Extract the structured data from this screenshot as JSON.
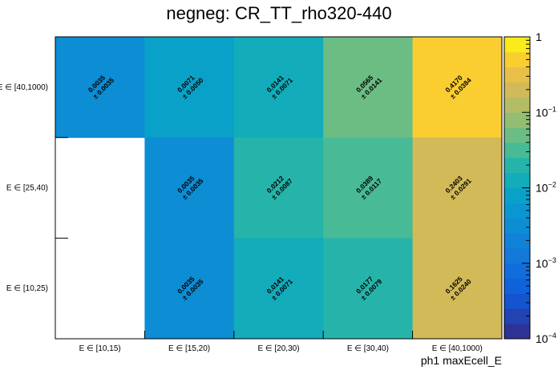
{
  "chart_data": {
    "type": "heatmap",
    "title": "negneg: CR_TT_rho320-440",
    "xlabel": "ph1 maxEcell_E",
    "ylabel": "",
    "x_categories": [
      "E ∈ [10,15)",
      "E ∈ [15,20)",
      "E ∈ [20,30)",
      "E ∈ [30,40)",
      "E ∈ [40,1000)"
    ],
    "y_categories": [
      "E ∈ [10,25)",
      "E ∈ [25,40)",
      "E ∈ [40,1000)"
    ],
    "cells": [
      {
        "x": 0,
        "y": 2,
        "value": 0.0035,
        "error": 0.0035,
        "value_label": "0.0035",
        "error_label": "± 0.0035"
      },
      {
        "x": 1,
        "y": 2,
        "value": 0.0071,
        "error": 0.005,
        "value_label": "0.0071",
        "error_label": "± 0.0050"
      },
      {
        "x": 2,
        "y": 2,
        "value": 0.0141,
        "error": 0.0071,
        "value_label": "0.0141",
        "error_label": "± 0.0071"
      },
      {
        "x": 3,
        "y": 2,
        "value": 0.0565,
        "error": 0.0141,
        "value_label": "0.0565",
        "error_label": "± 0.0141"
      },
      {
        "x": 4,
        "y": 2,
        "value": 0.417,
        "error": 0.0384,
        "value_label": "0.4170",
        "error_label": "± 0.0384"
      },
      {
        "x": 1,
        "y": 1,
        "value": 0.0035,
        "error": 0.0035,
        "value_label": "0.0035",
        "error_label": "± 0.0035"
      },
      {
        "x": 2,
        "y": 1,
        "value": 0.0212,
        "error": 0.0087,
        "value_label": "0.0212",
        "error_label": "± 0.0087"
      },
      {
        "x": 3,
        "y": 1,
        "value": 0.0389,
        "error": 0.0117,
        "value_label": "0.0389",
        "error_label": "± 0.0117"
      },
      {
        "x": 4,
        "y": 1,
        "value": 0.2403,
        "error": 0.0291,
        "value_label": "0.2403",
        "error_label": "± 0.0291"
      },
      {
        "x": 1,
        "y": 0,
        "value": 0.0035,
        "error": 0.0035,
        "value_label": "0.0035",
        "error_label": "± 0.0035"
      },
      {
        "x": 2,
        "y": 0,
        "value": 0.0141,
        "error": 0.0071,
        "value_label": "0.0141",
        "error_label": "± 0.0071"
      },
      {
        "x": 3,
        "y": 0,
        "value": 0.0177,
        "error": 0.0079,
        "value_label": "0.0177",
        "error_label": "± 0.0079"
      },
      {
        "x": 4,
        "y": 0,
        "value": 0.1625,
        "error": 0.024,
        "value_label": "0.1625",
        "error_label": "± 0.0240"
      }
    ],
    "colorbar": {
      "scale": "log",
      "range": [
        0.0001,
        1
      ],
      "tick_labels": [
        {
          "value": 1,
          "base": "1",
          "exp": ""
        },
        {
          "value": 0.1,
          "base": "10",
          "exp": "−1"
        },
        {
          "value": 0.01,
          "base": "10",
          "exp": "−2"
        },
        {
          "value": 0.001,
          "base": "10",
          "exp": "−3"
        },
        {
          "value": 0.0001,
          "base": "10",
          "exp": "−4"
        }
      ]
    },
    "grid": false
  }
}
